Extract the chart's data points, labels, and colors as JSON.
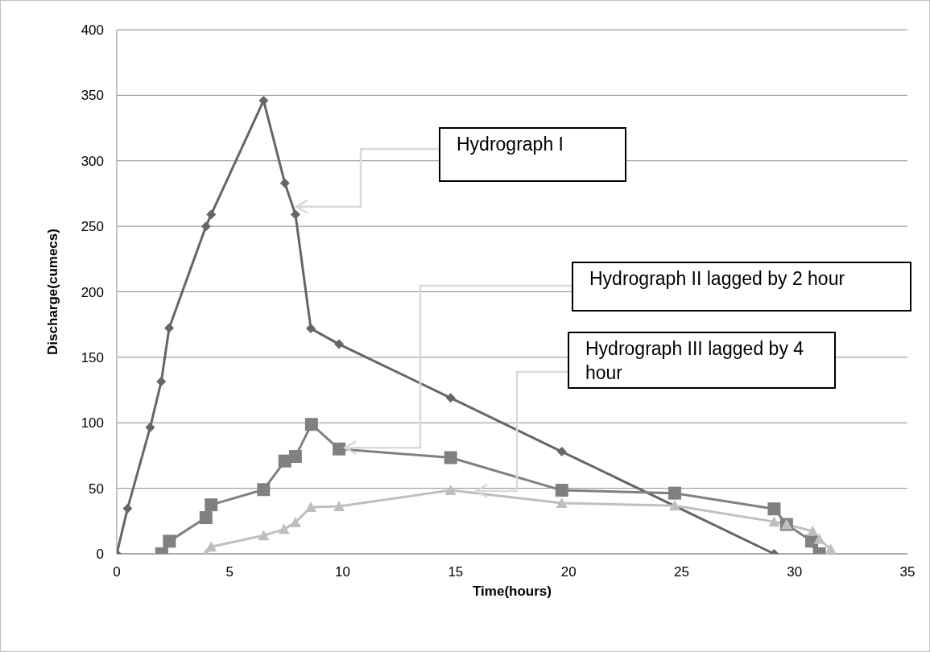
{
  "chart_data": {
    "type": "line",
    "xlabel": "Time(hours)",
    "ylabel": "Discharge(cumecs)",
    "xlim": [
      0,
      35
    ],
    "xticks": [
      0,
      5,
      10,
      15,
      20,
      25,
      30,
      35
    ],
    "ylim": [
      0,
      400
    ],
    "yticks": [
      0,
      50,
      100,
      150,
      200,
      250,
      300,
      350,
      400
    ],
    "grid": "y",
    "series": [
      {
        "color": "#666666",
        "marker": "diamond",
        "x": [
          0,
          0.48,
          1.48,
          1.97,
          2.32,
          3.95,
          4.18,
          6.5,
          7.44,
          7.91,
          8.59,
          9.84,
          14.78,
          19.7,
          29.1
        ],
        "values": [
          0,
          34.6,
          96.5,
          131.5,
          172.4,
          250,
          259,
          346,
          283,
          259,
          172,
          160,
          119,
          78,
          0
        ]
      },
      {
        "color": "#808080",
        "marker": "square",
        "x": [
          1.99,
          2.33,
          3.95,
          4.18,
          6.5,
          7.44,
          7.91,
          8.62,
          9.84,
          14.78,
          19.7,
          24.7,
          29.1,
          29.65,
          30.76,
          31.1
        ],
        "values": [
          0,
          9.6,
          27.6,
          37.4,
          49,
          70.8,
          74.3,
          98.8,
          80,
          73.4,
          48.5,
          46.3,
          34.3,
          22.4,
          9.6,
          0
        ]
      },
      {
        "color": "#bfbfbf",
        "marker": "triangle",
        "x": [
          3.96,
          4.18,
          6.5,
          7.4,
          7.91,
          8.59,
          9.84,
          14.78,
          19.7,
          24.7,
          29.1,
          29.65,
          30.8,
          31.1,
          31.6
        ],
        "values": [
          0,
          5.4,
          14,
          18.7,
          24,
          35.7,
          36.3,
          48.5,
          38.7,
          36.7,
          24.5,
          22.4,
          17.3,
          11.2,
          3.5
        ]
      }
    ],
    "annotations": [
      {
        "text": "Hydrograph I",
        "x": 7.95,
        "y": 265
      },
      {
        "text": "Hydrograph II lagged by 2 hour",
        "x": 10.1,
        "y": 81
      },
      {
        "text": "Hydrograph III lagged by 4 hour",
        "x": 15.9,
        "y": 48
      }
    ]
  }
}
